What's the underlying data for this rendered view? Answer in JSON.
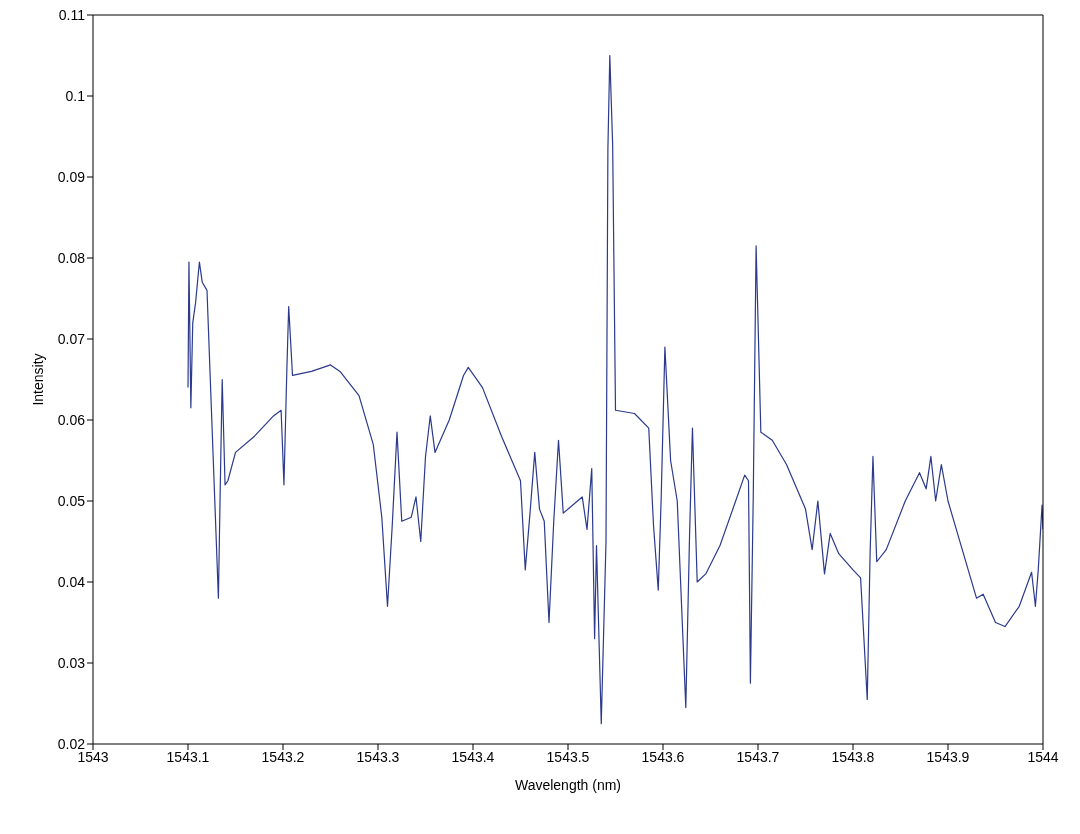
{
  "chart_data": {
    "type": "line",
    "xlabel": "Wavelength (nm)",
    "ylabel": "Intensity",
    "xlim": [
      1543,
      1544
    ],
    "xticks": [
      1543,
      1543.1,
      1543.2,
      1543.3,
      1543.4,
      1543.5,
      1543.6,
      1543.7,
      1543.8,
      1543.9,
      1544
    ],
    "ylim": [
      0.02,
      0.11
    ],
    "yticks": [
      0.02,
      0.03,
      0.04,
      0.05,
      0.06,
      0.07,
      0.08,
      0.09,
      0.1,
      0.11
    ],
    "grid": false,
    "legend": false,
    "marker": "none",
    "line_style": "solid",
    "x": [
      1543.1,
      1543.101,
      1543.103,
      1543.105,
      1543.108,
      1543.112,
      1543.115,
      1543.12,
      1543.132,
      1543.134,
      1543.136,
      1543.139,
      1543.142,
      1543.15,
      1543.17,
      1543.19,
      1543.198,
      1543.201,
      1543.204,
      1543.206,
      1543.21,
      1543.23,
      1543.25,
      1543.26,
      1543.28,
      1543.295,
      1543.304,
      1543.31,
      1543.315,
      1543.32,
      1543.325,
      1543.335,
      1543.34,
      1543.345,
      1543.35,
      1543.355,
      1543.36,
      1543.375,
      1543.39,
      1543.395,
      1543.41,
      1543.43,
      1543.45,
      1543.455,
      1543.46,
      1543.465,
      1543.47,
      1543.475,
      1543.48,
      1543.485,
      1543.49,
      1543.495,
      1543.51,
      1543.515,
      1543.52,
      1543.525,
      1543.528,
      1543.53,
      1543.535,
      1543.54,
      1543.542,
      1543.544,
      1543.547,
      1543.55,
      1543.57,
      1543.585,
      1543.59,
      1543.595,
      1543.598,
      1543.602,
      1543.608,
      1543.615,
      1543.624,
      1543.628,
      1543.631,
      1543.636,
      1543.645,
      1543.66,
      1543.675,
      1543.686,
      1543.69,
      1543.692,
      1543.695,
      1543.698,
      1543.703,
      1543.715,
      1543.73,
      1543.75,
      1543.757,
      1543.763,
      1543.77,
      1543.776,
      1543.785,
      1543.8,
      1543.808,
      1543.815,
      1543.818,
      1543.821,
      1543.825,
      1543.835,
      1543.855,
      1543.87,
      1543.877,
      1543.882,
      1543.887,
      1543.893,
      1543.9,
      1543.915,
      1543.93,
      1543.937,
      1543.95,
      1543.96,
      1543.975,
      1543.988,
      1543.992,
      1543.995,
      1543.999,
      1544
    ],
    "series": [
      {
        "color": "#2b3a8c",
        "values": [
          0.064,
          0.0795,
          0.0615,
          0.072,
          0.0745,
          0.0795,
          0.077,
          0.076,
          0.038,
          0.052,
          0.065,
          0.052,
          0.0525,
          0.056,
          0.058,
          0.0605,
          0.0612,
          0.052,
          0.066,
          0.074,
          0.0655,
          0.066,
          0.0668,
          0.066,
          0.063,
          0.057,
          0.048,
          0.037,
          0.047,
          0.0585,
          0.0475,
          0.048,
          0.0505,
          0.045,
          0.0555,
          0.0605,
          0.056,
          0.06,
          0.0655,
          0.0665,
          0.064,
          0.058,
          0.0525,
          0.0415,
          0.0485,
          0.056,
          0.049,
          0.0475,
          0.035,
          0.0475,
          0.0575,
          0.0485,
          0.05,
          0.0505,
          0.0465,
          0.054,
          0.033,
          0.0445,
          0.0225,
          0.045,
          0.0935,
          0.105,
          0.094,
          0.0612,
          0.0608,
          0.059,
          0.047,
          0.039,
          0.05,
          0.069,
          0.055,
          0.05,
          0.0245,
          0.046,
          0.059,
          0.04,
          0.041,
          0.0445,
          0.0495,
          0.0532,
          0.0525,
          0.0275,
          0.0505,
          0.0815,
          0.0585,
          0.0575,
          0.0545,
          0.049,
          0.044,
          0.05,
          0.041,
          0.046,
          0.0435,
          0.0415,
          0.0405,
          0.0255,
          0.0435,
          0.0555,
          0.0425,
          0.044,
          0.05,
          0.0535,
          0.0515,
          0.0555,
          0.05,
          0.0545,
          0.05,
          0.044,
          0.038,
          0.0385,
          0.035,
          0.0345,
          0.037,
          0.0412,
          0.037,
          0.0415,
          0.0495,
          0.0465
        ]
      }
    ]
  }
}
